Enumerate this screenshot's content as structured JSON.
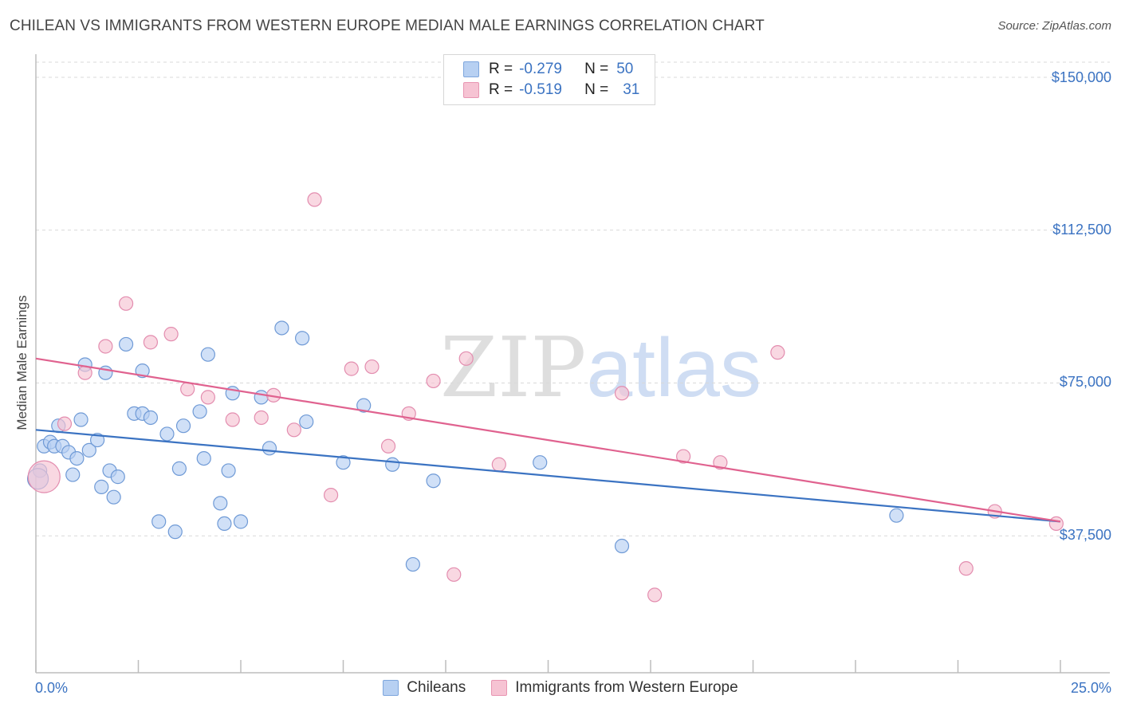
{
  "title": "CHILEAN VS IMMIGRANTS FROM WESTERN EUROPE MEDIAN MALE EARNINGS CORRELATION CHART",
  "source": "Source: ZipAtlas.com",
  "watermark": {
    "zip": "ZIP",
    "atlas": "atlas"
  },
  "colors": {
    "blue": "#3b73c2",
    "blue_fill": "#b7d0f2",
    "pink": "#e0628f",
    "pink_fill": "#f6c3d3"
  },
  "legend": {
    "rows": [
      {
        "r_label": "R =",
        "r_value": "-0.279",
        "n_label": "N =",
        "n_value": "50"
      },
      {
        "r_label": "R =",
        "r_value": "-0.519",
        "n_label": "N =",
        "n_value": "31"
      }
    ]
  },
  "chart_data": {
    "type": "scatter",
    "title": "CHILEAN VS IMMIGRANTS FROM WESTERN EUROPE MEDIAN MALE EARNINGS CORRELATION CHART",
    "xlabel": "",
    "ylabel": "Median Male Earnings",
    "xlim": [
      0,
      25
    ],
    "ylim": [
      0,
      150000
    ],
    "x_tick_labels": [
      "0.0%",
      "25.0%"
    ],
    "y_ticks": [
      {
        "value": 150000,
        "label": "$150,000"
      },
      {
        "value": 112500,
        "label": "$112,500"
      },
      {
        "value": 75000,
        "label": "$75,000"
      },
      {
        "value": 37500,
        "label": "$37,500"
      }
    ],
    "grid": true,
    "series": [
      {
        "name": "Chileans",
        "color": "#3b73c2",
        "trend": {
          "x": [
            0,
            25
          ],
          "y": [
            63500,
            41000
          ]
        },
        "points": [
          [
            0.1,
            53500
          ],
          [
            0.2,
            59500
          ],
          [
            0.35,
            60500
          ],
          [
            0.45,
            59500
          ],
          [
            0.55,
            64500
          ],
          [
            0.65,
            59500
          ],
          [
            0.8,
            58000
          ],
          [
            0.9,
            52500
          ],
          [
            1.0,
            56500
          ],
          [
            1.1,
            66000
          ],
          [
            1.3,
            58500
          ],
          [
            1.2,
            79500
          ],
          [
            1.5,
            61000
          ],
          [
            1.6,
            49500
          ],
          [
            1.7,
            77500
          ],
          [
            1.8,
            53500
          ],
          [
            1.9,
            47000
          ],
          [
            2.0,
            52000
          ],
          [
            2.2,
            84500
          ],
          [
            2.4,
            67500
          ],
          [
            2.6,
            67500
          ],
          [
            2.6,
            78000
          ],
          [
            2.8,
            66500
          ],
          [
            3.0,
            41000
          ],
          [
            3.2,
            62500
          ],
          [
            3.4,
            38500
          ],
          [
            3.5,
            54000
          ],
          [
            3.6,
            64500
          ],
          [
            4.0,
            68000
          ],
          [
            4.1,
            56500
          ],
          [
            4.2,
            82000
          ],
          [
            4.5,
            45500
          ],
          [
            4.6,
            40500
          ],
          [
            4.7,
            53500
          ],
          [
            4.8,
            72500
          ],
          [
            5.0,
            41000
          ],
          [
            5.5,
            71500
          ],
          [
            5.7,
            59000
          ],
          [
            6.0,
            88500
          ],
          [
            6.5,
            86000
          ],
          [
            6.6,
            65500
          ],
          [
            7.5,
            55500
          ],
          [
            8.0,
            69500
          ],
          [
            8.7,
            55000
          ],
          [
            9.2,
            30500
          ],
          [
            9.7,
            51000
          ],
          [
            12.3,
            55500
          ],
          [
            14.3,
            35000
          ],
          [
            21.0,
            42500
          ],
          [
            0.05,
            51500
          ]
        ]
      },
      {
        "name": "Immigrants from Western Europe",
        "color": "#e0628f",
        "trend": {
          "x": [
            0,
            25
          ],
          "y": [
            81000,
            41000
          ]
        },
        "points": [
          [
            0.2,
            52000
          ],
          [
            0.7,
            65000
          ],
          [
            1.2,
            77500
          ],
          [
            1.7,
            84000
          ],
          [
            2.2,
            94500
          ],
          [
            2.8,
            85000
          ],
          [
            3.3,
            87000
          ],
          [
            3.7,
            73500
          ],
          [
            4.2,
            71500
          ],
          [
            4.8,
            66000
          ],
          [
            5.5,
            66500
          ],
          [
            5.8,
            72000
          ],
          [
            6.3,
            63500
          ],
          [
            6.8,
            120000
          ],
          [
            7.2,
            47500
          ],
          [
            7.7,
            78500
          ],
          [
            8.2,
            79000
          ],
          [
            8.6,
            59500
          ],
          [
            9.1,
            67500
          ],
          [
            9.7,
            75500
          ],
          [
            10.2,
            28000
          ],
          [
            10.5,
            81000
          ],
          [
            11.3,
            55000
          ],
          [
            14.3,
            72500
          ],
          [
            15.1,
            23000
          ],
          [
            15.8,
            57000
          ],
          [
            16.7,
            55500
          ],
          [
            18.1,
            82500
          ],
          [
            22.7,
            29500
          ],
          [
            23.4,
            43500
          ],
          [
            24.9,
            40500
          ]
        ]
      }
    ]
  },
  "bottom_legend": [
    "Chileans",
    "Immigrants from Western Europe"
  ]
}
